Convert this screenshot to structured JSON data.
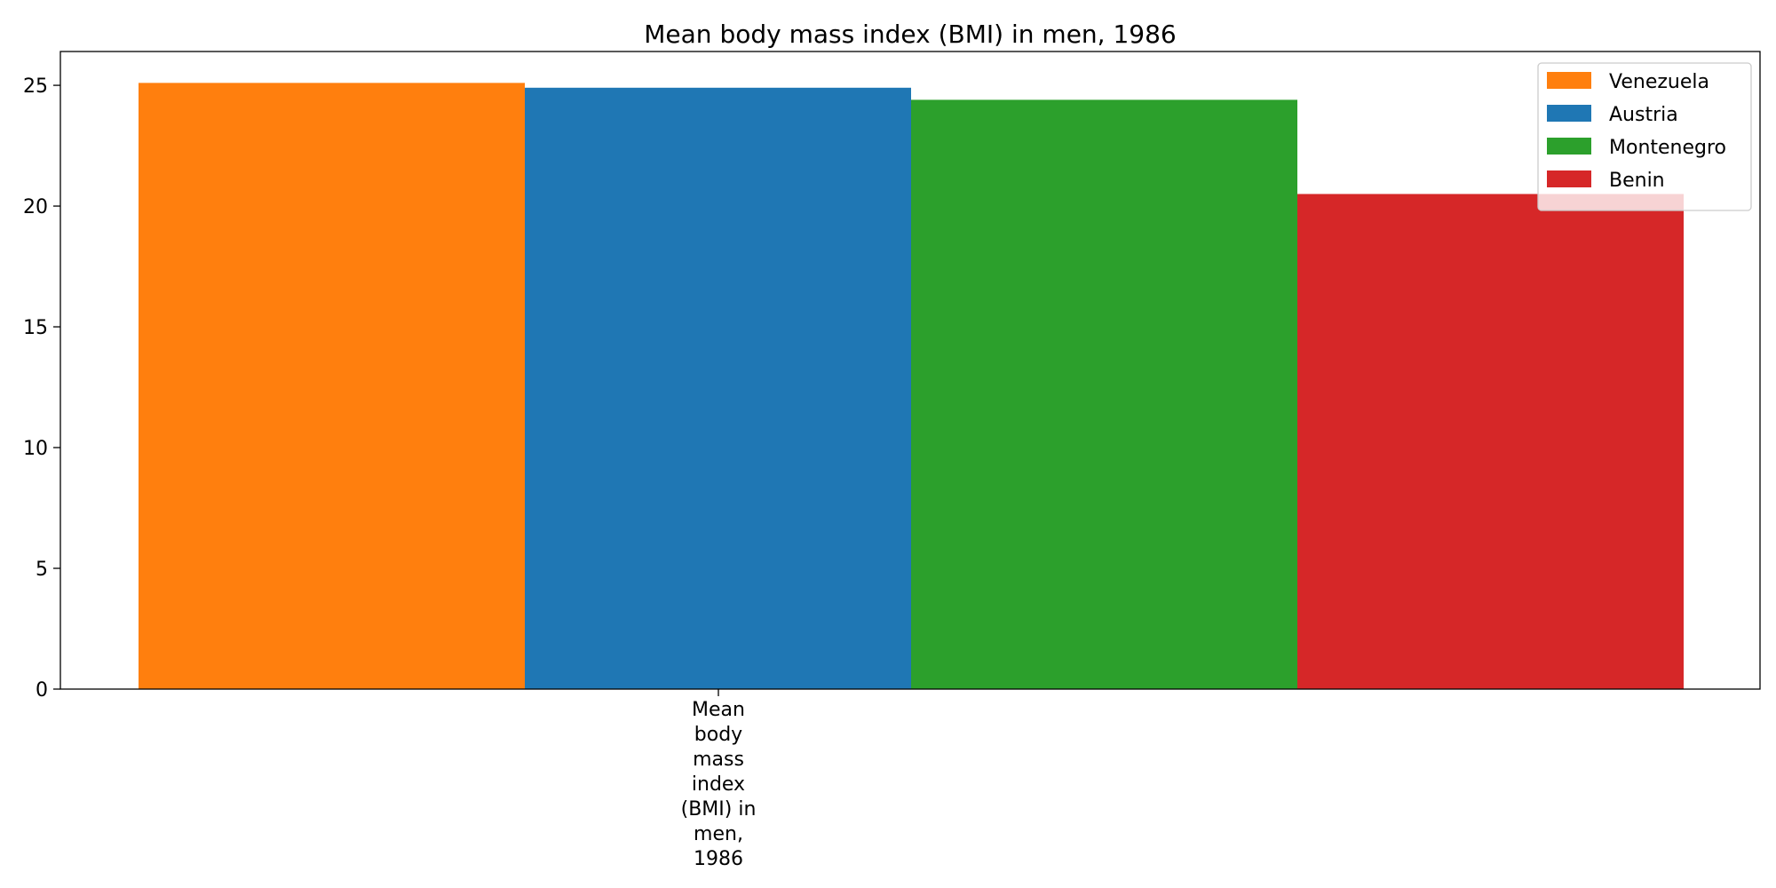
{
  "chart_data": {
    "type": "bar",
    "title": "Mean body mass index (BMI) in men, 1986",
    "categories": [
      "Mean body mass index (BMI) in men, 1986"
    ],
    "category_label_lines": [
      "Mean",
      "body",
      "mass",
      "index",
      "(BMI) in",
      "men,",
      "1986"
    ],
    "series": [
      {
        "name": "Venezuela",
        "values": [
          25.1
        ],
        "color": "#ff7f0e"
      },
      {
        "name": "Austria",
        "values": [
          24.9
        ],
        "color": "#1f77b4"
      },
      {
        "name": "Montenegro",
        "values": [
          24.4
        ],
        "color": "#2ca02c"
      },
      {
        "name": "Benin",
        "values": [
          20.5
        ],
        "color": "#d62728"
      }
    ],
    "xlabel": "",
    "ylabel": "",
    "ylim": [
      0,
      26.4
    ],
    "yticks": [
      0,
      5,
      10,
      15,
      20,
      25
    ],
    "grid": false,
    "legend_position": "top-right"
  }
}
